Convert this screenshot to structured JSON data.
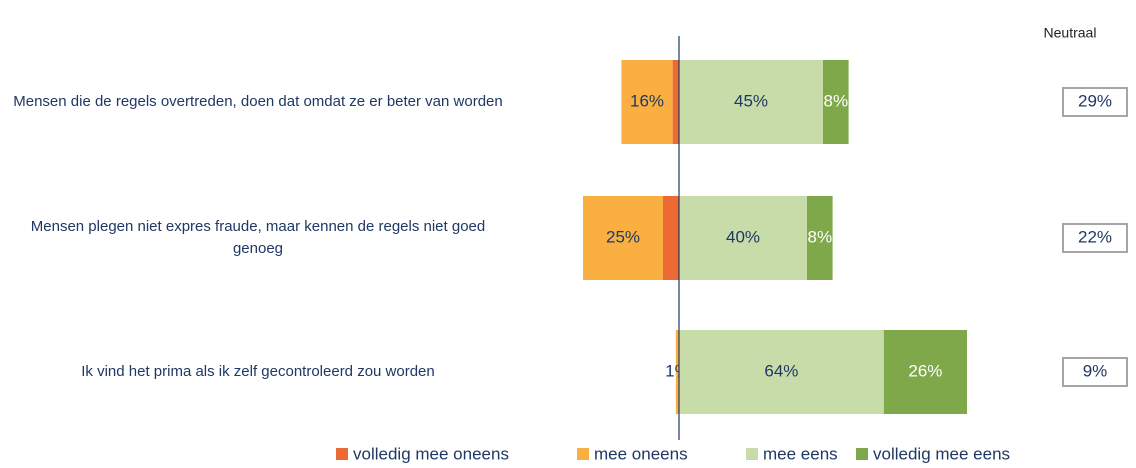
{
  "chart_data": {
    "type": "diverging-bar",
    "categories": [
      "Mensen die de regels overtreden, doen dat omdat ze er beter van worden",
      "Mensen plegen niet expres fraude, maar kennen de regels niet goed genoeg",
      "Ik vind het prima als ik zelf gecontroleerd zou worden"
    ],
    "series": [
      {
        "name": "volledig mee oneens",
        "color": "#ed6a35",
        "side": "negative",
        "values": [
          2,
          5,
          null
        ],
        "value_labels": [
          "2%",
          "5%",
          null
        ]
      },
      {
        "name": "mee oneens",
        "color": "#f9b040",
        "side": "negative",
        "values": [
          16,
          25,
          1
        ],
        "value_labels": [
          "16%",
          "25%",
          "1%"
        ]
      },
      {
        "name": "mee eens",
        "color": "#c8dcaa",
        "side": "positive",
        "values": [
          45,
          40,
          64
        ],
        "value_labels": [
          "45%",
          "40%",
          "64%"
        ]
      },
      {
        "name": "volledig mee eens",
        "color": "#7fa84a",
        "side": "positive",
        "values": [
          8,
          8,
          26
        ],
        "value_labels": [
          "8%",
          "8%",
          "26%"
        ]
      }
    ],
    "neutral": {
      "title": "Neutraal",
      "values": [
        29,
        22,
        9
      ],
      "value_labels": [
        "29%",
        "22%",
        "9%"
      ]
    }
  }
}
